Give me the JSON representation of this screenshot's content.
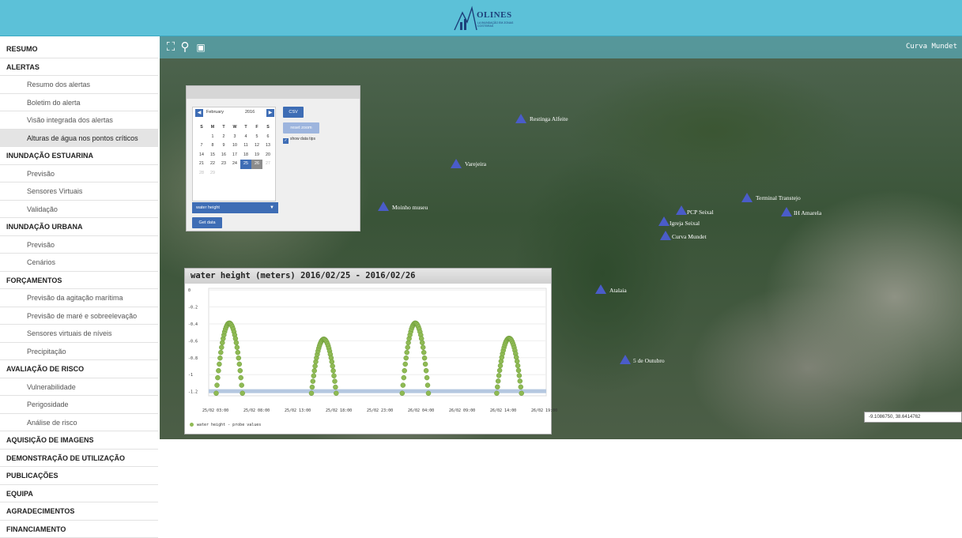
{
  "header": {
    "logo_text": "OLINES",
    "logo_sub": "LA INUNDAÇÃO EM ZONAS COSTEIRAS"
  },
  "sidebar": {
    "items": [
      {
        "label": "RESUMO",
        "type": "section"
      },
      {
        "label": "ALERTAS",
        "type": "section"
      },
      {
        "label": "Resumo dos alertas",
        "type": "sub"
      },
      {
        "label": "Boletim do alerta",
        "type": "sub"
      },
      {
        "label": "Visão integrada dos alertas",
        "type": "sub"
      },
      {
        "label": "Alturas de água nos pontos críticos",
        "type": "sub",
        "active": true
      },
      {
        "label": "INUNDAÇÃO ESTUARINA",
        "type": "section"
      },
      {
        "label": "Previsão",
        "type": "sub"
      },
      {
        "label": "Sensores Virtuais",
        "type": "sub"
      },
      {
        "label": "Validação",
        "type": "sub"
      },
      {
        "label": "INUNDAÇÃO URBANA",
        "type": "section"
      },
      {
        "label": "Previsão",
        "type": "sub"
      },
      {
        "label": "Cenários",
        "type": "sub"
      },
      {
        "label": "FORÇAMENTOS",
        "type": "section"
      },
      {
        "label": "Previsão da agitação marítima",
        "type": "sub"
      },
      {
        "label": "Previsão de maré e sobreelevação",
        "type": "sub"
      },
      {
        "label": "Sensores virtuais de níveis",
        "type": "sub"
      },
      {
        "label": "Precipitação",
        "type": "sub"
      },
      {
        "label": "AVALIAÇÃO DE RISCO",
        "type": "section"
      },
      {
        "label": "Vulnerabilidade",
        "type": "sub"
      },
      {
        "label": "Perigosidade",
        "type": "sub"
      },
      {
        "label": "Análise de risco",
        "type": "sub"
      },
      {
        "label": "AQUISIÇÃO DE IMAGENS",
        "type": "section"
      },
      {
        "label": "DEMONSTRAÇÃO DE UTILIZAÇÃO",
        "type": "section"
      },
      {
        "label": "PUBLICAÇÕES",
        "type": "section"
      },
      {
        "label": "EQUIPA",
        "type": "section"
      },
      {
        "label": "AGRADECIMENTOS",
        "type": "section"
      },
      {
        "label": "FINANCIAMENTO",
        "type": "section"
      }
    ]
  },
  "map": {
    "title": "Curva Mundet",
    "coords": "-9.1086750, 38.6414762",
    "controls": [
      {
        "icon": "fullscreen-icon",
        "glyph": "⛶"
      },
      {
        "icon": "search-icon",
        "glyph": "⚲"
      },
      {
        "icon": "layer-icon",
        "glyph": "▣"
      }
    ],
    "markers": [
      "Restinga Alfeite",
      "Varejeira",
      "Moinho museu",
      "PCP Seixal",
      "Terminal Transtejo",
      "IH Amarela",
      "Igreja Seixal",
      "Curva Mundet",
      "Atalaia",
      "5 de Outubro"
    ]
  },
  "panel": {
    "calendar": {
      "month": "February",
      "year": "2016",
      "weekdays": [
        "S",
        "M",
        "T",
        "W",
        "T",
        "F",
        "S"
      ],
      "weeks": [
        [
          "",
          "1",
          "2",
          "3",
          "4",
          "5",
          "6"
        ],
        [
          "7",
          "8",
          "9",
          "10",
          "11",
          "12",
          "13"
        ],
        [
          "14",
          "15",
          "16",
          "17",
          "18",
          "19",
          "20"
        ],
        [
          "21",
          "22",
          "23",
          "24",
          "25",
          "26",
          "27"
        ],
        [
          "28",
          "29",
          "",
          "",
          "",
          "",
          ""
        ]
      ],
      "selected": [
        "25"
      ],
      "range_end": [
        "26"
      ],
      "dim": [
        "27",
        "28",
        "29"
      ],
      "prev": "◀",
      "next": "▶"
    },
    "csv_label": "CSV",
    "reset_label": "reset zoom",
    "tips_label": "show data tips",
    "checkmark": "✓",
    "variable": "water height",
    "caret": "▼",
    "get_label": "Get data"
  },
  "chart_data": {
    "type": "scatter",
    "title": "water height (meters) 2016/02/25 - 2016/02/26",
    "series": [
      {
        "name": "water height - probe values",
        "color": "#8fba54"
      }
    ],
    "x_ticks": [
      "25/02 03:00",
      "25/02 08:00",
      "25/02 13:00",
      "25/02 18:00",
      "25/02 23:00",
      "26/02 04:00",
      "26/02 09:00",
      "26/02 14:00",
      "26/02 19:00"
    ],
    "y_ticks": [
      "0",
      "-0.2",
      "-0.4",
      "-0.6",
      "-0.8",
      "-1",
      "-1.2"
    ],
    "ylim": [
      -1.25,
      0.02
    ],
    "x_range_hours": [
      0,
      45
    ],
    "wet_periods": [
      {
        "start": 1.0,
        "end": 4.5,
        "peak": -0.39
      },
      {
        "start": 13.7,
        "end": 17.0,
        "peak": -0.58
      },
      {
        "start": 25.8,
        "end": 29.3,
        "peak": -0.39
      },
      {
        "start": 38.4,
        "end": 41.7,
        "peak": -0.57
      }
    ]
  }
}
